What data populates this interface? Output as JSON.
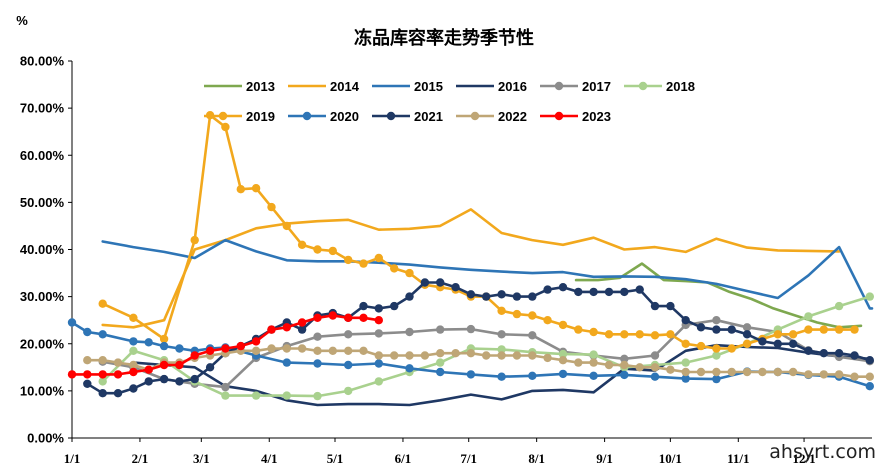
{
  "watermark": "ahsyrt.com",
  "chart_data": {
    "type": "line",
    "title": "冻品库容率走势季节性",
    "unit_label": "%",
    "xlabel": "",
    "ylabel": "",
    "ylim": [
      0,
      80
    ],
    "y_ticks": [
      "0.00%",
      "10.00%",
      "20.00%",
      "30.00%",
      "40.00%",
      "50.00%",
      "60.00%",
      "70.00%",
      "80.00%"
    ],
    "x_ticks": [
      "1/1",
      "2/1",
      "3/1",
      "4/1",
      "5/1",
      "6/1",
      "7/1",
      "8/1",
      "9/1",
      "10/1",
      "11/1",
      "12/1"
    ],
    "x_tick_days": [
      0,
      31,
      59,
      90,
      120,
      151,
      181,
      212,
      243,
      273,
      304,
      334
    ],
    "x_range_days": [
      0,
      365
    ],
    "legend_position": "top",
    "grid": false,
    "series": [
      {
        "name": "2013",
        "color": "#7EA84F",
        "marker": false,
        "x": [
          230,
          240,
          250,
          260,
          270,
          280,
          290,
          300,
          310,
          320,
          330,
          340,
          350,
          360
        ],
        "y": [
          33.5,
          33.5,
          34,
          37,
          33.5,
          33.3,
          33,
          31,
          29.5,
          27.5,
          26,
          24.5,
          23.5,
          23.8
        ]
      },
      {
        "name": "2014",
        "color": "#F2A81D",
        "marker": false,
        "x": [
          14,
          28,
          42,
          56,
          70,
          84,
          98,
          112,
          126,
          140,
          154,
          168,
          182,
          196,
          210,
          224,
          238,
          252,
          266,
          280,
          294,
          308,
          322,
          336,
          350
        ],
        "y": [
          24,
          23.5,
          25,
          40,
          42,
          44.5,
          45.5,
          46,
          46.3,
          44.2,
          44.4,
          45,
          48.5,
          43.5,
          42,
          41,
          42.5,
          40,
          40.5,
          39.5,
          42.3,
          40.4,
          39.8,
          39.7,
          39.6
        ]
      },
      {
        "name": "2015",
        "color": "#2E75B6",
        "marker": false,
        "x": [
          14,
          28,
          42,
          56,
          70,
          84,
          98,
          112,
          126,
          140,
          154,
          168,
          182,
          196,
          210,
          224,
          238,
          252,
          266,
          280,
          294,
          308,
          322,
          336,
          350,
          364,
          365
        ],
        "y": [
          41.7,
          40.5,
          39.5,
          38.2,
          42,
          39.6,
          37.7,
          37.5,
          37.5,
          37.2,
          36.8,
          36.2,
          35.7,
          35.3,
          35,
          35.2,
          34.2,
          34.3,
          34.2,
          33.7,
          32.7,
          31.2,
          29.7,
          34.5,
          40.5,
          27.5,
          27.5
        ]
      },
      {
        "name": "2016",
        "color": "#1F3864",
        "marker": false,
        "x": [
          28,
          42,
          56,
          70,
          84,
          98,
          112,
          126,
          140,
          154,
          168,
          182,
          196,
          210,
          224,
          238,
          252,
          266,
          280,
          294,
          308,
          322,
          336,
          350,
          364
        ],
        "y": [
          16,
          15.5,
          15,
          11,
          10,
          8,
          7,
          7.2,
          7.2,
          7,
          8,
          9.2,
          8.2,
          10,
          10.2,
          9.7,
          14.7,
          14.3,
          18.5,
          19.7,
          19.3,
          19.1,
          18.1,
          17.3,
          16.8
        ]
      },
      {
        "name": "2017",
        "color": "#8C8C8C",
        "marker": true,
        "x": [
          14,
          28,
          42,
          56,
          70,
          84,
          98,
          112,
          126,
          140,
          154,
          168,
          182,
          196,
          210,
          224,
          238,
          252,
          266,
          280,
          294,
          308,
          322,
          336,
          350,
          364
        ],
        "y": [
          16.2,
          15,
          12.5,
          11.5,
          10.8,
          17,
          19.5,
          21.5,
          22,
          22.2,
          22.5,
          23,
          23.1,
          22,
          21.8,
          18.3,
          17.5,
          16.8,
          17.5,
          24,
          25,
          23.5,
          22.5,
          18.6,
          17.2,
          16.3
        ]
      },
      {
        "name": "2018",
        "color": "#A9D18E",
        "marker": true,
        "x": [
          14,
          28,
          42,
          56,
          70,
          84,
          98,
          112,
          126,
          140,
          154,
          168,
          182,
          196,
          210,
          224,
          238,
          252,
          266,
          280,
          294,
          308,
          322,
          336,
          350,
          364
        ],
        "y": [
          12,
          18.5,
          16.5,
          12,
          9,
          9,
          9,
          8.9,
          10,
          12,
          14,
          16,
          19,
          18.8,
          18.2,
          17.8,
          17.7,
          15,
          15.5,
          16,
          17.5,
          20,
          23,
          25.8,
          28,
          30
        ]
      },
      {
        "name": "2019",
        "color": "#F2A81D",
        "marker": true,
        "x": [
          14,
          28,
          42,
          56,
          63,
          70,
          77,
          84,
          91,
          98,
          105,
          112,
          119,
          126,
          133,
          140,
          147,
          154,
          161,
          168,
          175,
          182,
          189,
          196,
          203,
          210,
          217,
          224,
          231,
          238,
          245,
          252,
          259,
          266,
          273,
          280,
          287,
          294,
          301,
          308,
          315,
          322,
          329,
          336,
          343,
          350,
          357
        ],
        "y": [
          28.5,
          25.5,
          21,
          42,
          68.5,
          66,
          52.8,
          53,
          49,
          45,
          41,
          40,
          39.7,
          37.8,
          37,
          38.2,
          36,
          35,
          32.5,
          32,
          31.5,
          30,
          30,
          27,
          26.3,
          26,
          25,
          24,
          23,
          22.5,
          22,
          22,
          22,
          21.8,
          22,
          20,
          19.5,
          19,
          19,
          20,
          21,
          22,
          22,
          23,
          23,
          23,
          23
        ]
      },
      {
        "name": "2020",
        "color": "#2E75B6",
        "marker": true,
        "x": [
          0,
          7,
          14,
          28,
          35,
          42,
          49,
          56,
          63,
          70,
          84,
          98,
          112,
          126,
          140,
          154,
          168,
          182,
          196,
          210,
          224,
          238,
          252,
          266,
          280,
          294,
          308,
          322,
          336,
          350,
          364
        ],
        "y": [
          24.5,
          22.5,
          22,
          20.5,
          20.3,
          19.5,
          19,
          18.5,
          19,
          19.2,
          17.5,
          16,
          15.8,
          15.5,
          15.8,
          14.8,
          14,
          13.5,
          13,
          13.2,
          13.6,
          13.2,
          13.4,
          13,
          12.6,
          12.5,
          14.1,
          14,
          13.4,
          13,
          11
        ]
      },
      {
        "name": "2021",
        "color": "#1F3864",
        "marker": true,
        "x": [
          7,
          14,
          21,
          28,
          35,
          42,
          49,
          56,
          63,
          70,
          77,
          84,
          91,
          98,
          105,
          112,
          119,
          126,
          133,
          140,
          147,
          154,
          161,
          168,
          175,
          182,
          189,
          196,
          203,
          210,
          217,
          224,
          231,
          238,
          245,
          252,
          259,
          266,
          273,
          280,
          287,
          294,
          301,
          308,
          315,
          322,
          329,
          336,
          343,
          350,
          357,
          364
        ],
        "y": [
          11.5,
          9.5,
          9.5,
          10.5,
          12,
          12.5,
          12,
          12.5,
          15,
          18,
          19.5,
          21,
          23,
          24.5,
          23,
          26,
          26.5,
          25.5,
          28,
          27.5,
          28,
          30,
          33,
          33,
          32,
          30.5,
          30,
          30.5,
          30,
          30,
          31.5,
          32,
          31,
          31,
          31,
          31,
          31.5,
          28,
          28,
          25,
          23.5,
          23,
          23,
          22,
          20.5,
          20,
          20,
          18.5,
          18,
          18,
          17.5,
          16.5
        ]
      },
      {
        "name": "2022",
        "color": "#BFA676",
        "marker": true,
        "x": [
          7,
          14,
          21,
          28,
          35,
          42,
          49,
          56,
          63,
          70,
          77,
          84,
          91,
          98,
          105,
          112,
          119,
          126,
          133,
          140,
          147,
          154,
          161,
          168,
          175,
          182,
          189,
          196,
          203,
          210,
          217,
          224,
          231,
          238,
          245,
          252,
          259,
          266,
          273,
          280,
          287,
          294,
          301,
          308,
          315,
          322,
          329,
          336,
          343,
          350,
          357,
          364
        ],
        "y": [
          16.5,
          16.5,
          16,
          15.5,
          14.5,
          16,
          16,
          17,
          17.5,
          18,
          18.5,
          18.5,
          19,
          19,
          19,
          18.5,
          18.5,
          18.5,
          18.5,
          17.5,
          17.5,
          17.5,
          17.5,
          18,
          18,
          18,
          17.5,
          17.5,
          17.5,
          17.5,
          17,
          16.5,
          16,
          16,
          15.5,
          15.5,
          15,
          15,
          14.5,
          14,
          14,
          14,
          14,
          14,
          14,
          14,
          14,
          13.5,
          13.5,
          13.5,
          13,
          13
        ]
      },
      {
        "name": "2023",
        "color": "#FF0000",
        "marker": true,
        "x": [
          0,
          7,
          14,
          21,
          28,
          35,
          42,
          49,
          56,
          63,
          70,
          77,
          84,
          91,
          98,
          105,
          112,
          119,
          126,
          133,
          140
        ],
        "y": [
          13.5,
          13.5,
          13.5,
          13.5,
          14,
          14.5,
          15.5,
          15.5,
          17.5,
          18.5,
          19,
          19.5,
          20.5,
          23,
          23.5,
          24.5,
          25.5,
          26,
          25.5,
          25.5,
          25
        ]
      }
    ]
  }
}
